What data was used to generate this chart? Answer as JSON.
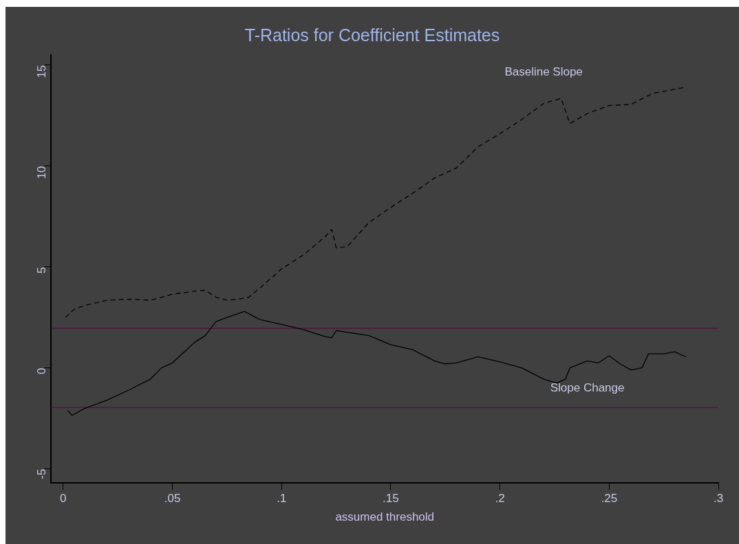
{
  "chart_data": {
    "type": "line",
    "title": "T-Ratios for Coefficient Estimates",
    "xlabel": "assumed threshold",
    "xlim": [
      -0.0055,
      0.3
    ],
    "xticks": [
      {
        "value": 0,
        "label": "0"
      },
      {
        "value": 0.05,
        "label": ".05"
      },
      {
        "value": 0.1,
        "label": ".1"
      },
      {
        "value": 0.15,
        "label": ".15"
      },
      {
        "value": 0.2,
        "label": ".2"
      },
      {
        "value": 0.25,
        "label": ".25"
      },
      {
        "value": 0.3,
        "label": ".3"
      }
    ],
    "ylim": [
      -5.7,
      15.5
    ],
    "yticks": [
      -5,
      0,
      5,
      10,
      15
    ],
    "marker": "none",
    "legend": false,
    "series": [
      {
        "name": "Baseline Slope",
        "color": "#000000",
        "line_style": "dashed",
        "x": [
          0.001,
          0.005,
          0.01,
          0.02,
          0.03,
          0.04,
          0.05,
          0.06,
          0.065,
          0.07,
          0.075,
          0.08,
          0.085,
          0.09,
          0.1,
          0.11,
          0.12,
          0.123,
          0.125,
          0.13,
          0.14,
          0.15,
          0.16,
          0.17,
          0.18,
          0.19,
          0.2,
          0.21,
          0.22,
          0.228,
          0.232,
          0.24,
          0.25,
          0.26,
          0.27,
          0.28,
          0.285
        ],
        "values": [
          2.5,
          2.9,
          3.1,
          3.35,
          3.4,
          3.35,
          3.65,
          3.8,
          3.85,
          3.5,
          3.35,
          3.4,
          3.5,
          3.95,
          4.9,
          5.6,
          6.5,
          6.85,
          5.95,
          6.0,
          7.2,
          7.95,
          8.65,
          9.4,
          9.9,
          10.95,
          11.6,
          12.3,
          13.1,
          13.35,
          12.1,
          12.6,
          13.0,
          13.05,
          13.6,
          13.8,
          13.9
        ]
      },
      {
        "name": "Slope Change",
        "color": "#000000",
        "line_style": "solid",
        "x": [
          0.002,
          0.004,
          0.01,
          0.02,
          0.03,
          0.04,
          0.045,
          0.05,
          0.06,
          0.065,
          0.07,
          0.075,
          0.083,
          0.09,
          0.1,
          0.11,
          0.12,
          0.123,
          0.125,
          0.14,
          0.15,
          0.16,
          0.17,
          0.175,
          0.18,
          0.19,
          0.2,
          0.21,
          0.22,
          0.226,
          0.23,
          0.232,
          0.24,
          0.245,
          0.25,
          0.255,
          0.26,
          0.265,
          0.268,
          0.275,
          0.28,
          0.285
        ],
        "values": [
          -2.1,
          -2.35,
          -2.0,
          -1.6,
          -1.1,
          -0.55,
          0,
          0.25,
          1.25,
          1.6,
          2.3,
          2.5,
          2.8,
          2.4,
          2.15,
          1.9,
          1.55,
          1.5,
          1.85,
          1.6,
          1.15,
          0.9,
          0.35,
          0.2,
          0.25,
          0.55,
          0.3,
          0,
          -0.55,
          -0.75,
          -0.55,
          0,
          0.35,
          0.25,
          0.6,
          0.2,
          -0.1,
          0,
          0.7,
          0.7,
          0.8,
          0.55
        ]
      }
    ],
    "ref_lines": [
      {
        "axis": "y",
        "value": 1.96,
        "color": "#55104a"
      },
      {
        "axis": "y",
        "value": -1.96,
        "color": "#55104a"
      }
    ]
  }
}
